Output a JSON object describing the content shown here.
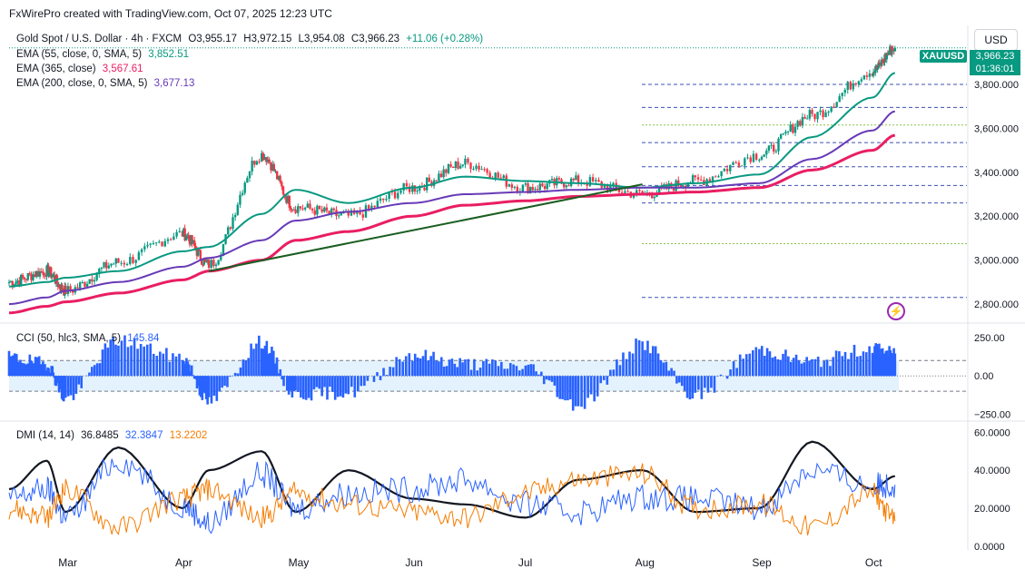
{
  "header": {
    "credit": "FxWirePro created with TradingView.com, Oct 07, 2025 12:23 UTC"
  },
  "main_legend": {
    "symbol": "Gold Spot / U.S. Dollar · 4h · FXCM",
    "open": "O3,955.17",
    "high": "H3,972.15",
    "low": "L3,954.08",
    "close": "C3,966.23",
    "change": "+11.06 (+0.28%)",
    "ema55_label": "EMA (55, close, 0, SMA, 5)",
    "ema55_value": "3,852.51",
    "ema365_label": "EMA (365, close)",
    "ema365_value": "3,567.61",
    "ema200_label": "EMA (200, close, 0, SMA, 5)",
    "ema200_value": "3,677.13"
  },
  "cci_legend": {
    "label": "CCI (50, hlc3, SMA, 5)",
    "value": "145.84"
  },
  "dmi_legend": {
    "label": "DMI (14, 14)",
    "adx": "36.8485",
    "plus_di": "32.3847",
    "minus_di": "13.2202"
  },
  "currency": "USD",
  "price_tag": {
    "ticker": "XAUUSD",
    "price": "3,966.23",
    "countdown": "01:36:01"
  },
  "colors": {
    "up": "#089981",
    "down": "#f23645",
    "ema55": "#089981",
    "ema365": "#e91e63",
    "ema200": "#673ab7",
    "trendline": "#1b5e20",
    "cci": "#2962ff",
    "adx": "#131722",
    "plus_di": "#2962ff",
    "minus_di": "#f57c00"
  },
  "icons": {
    "replay": "lightning-circle-icon"
  },
  "chart_data": [
    {
      "type": "candlestick",
      "title": "Gold Spot / U.S. Dollar · 4h · FXCM",
      "x_tick_labels": [
        "Mar",
        "Apr",
        "May",
        "Jun",
        "Jul",
        "Aug",
        "Sep",
        "Oct"
      ],
      "y_tick_labels": [
        "3,800.000",
        "3,600.000",
        "3,400.000",
        "3,200.000",
        "3,000.000",
        "2,800.000"
      ],
      "y_ticks": [
        3800,
        3600,
        3400,
        3200,
        3000,
        2800
      ],
      "ylim": [
        2730,
        4060
      ],
      "series_close_approx": {
        "x": [
          "Feb 14",
          "Feb 24",
          "Mar 01",
          "Mar 15",
          "Apr 01",
          "Apr 08",
          "Apr 22",
          "May 01",
          "May 15",
          "Jun 01",
          "Jun 15",
          "Jul 01",
          "Jul 15",
          "Aug 01",
          "Aug 15",
          "Sep 01",
          "Sep 15",
          "Oct 01",
          "Oct 07"
        ],
        "values": [
          2900,
          2950,
          2860,
          2990,
          3120,
          2980,
          3480,
          3240,
          3200,
          3330,
          3440,
          3330,
          3360,
          3300,
          3360,
          3480,
          3660,
          3860,
          3966
        ]
      },
      "ema_series": [
        {
          "name": "EMA (55, close, 0, SMA, 5)",
          "values": [
            2880,
            2900,
            2920,
            2950,
            3040,
            3060,
            3210,
            3320,
            3260,
            3330,
            3380,
            3360,
            3350,
            3330,
            3350,
            3390,
            3560,
            3740,
            3852
          ]
        },
        {
          "name": "EMA (365, close)",
          "values": [
            2760,
            2790,
            2810,
            2850,
            2910,
            2950,
            3000,
            3090,
            3130,
            3200,
            3250,
            3270,
            3290,
            3300,
            3310,
            3330,
            3410,
            3500,
            3568
          ]
        },
        {
          "name": "EMA (200, close, 0, SMA, 5)",
          "values": [
            2800,
            2830,
            2860,
            2900,
            2970,
            3010,
            3090,
            3180,
            3220,
            3260,
            3300,
            3310,
            3320,
            3330,
            3330,
            3350,
            3460,
            3590,
            3677
          ]
        }
      ],
      "horizontal_levels_blue_dashed": [
        3800,
        3695,
        3535,
        3425,
        3340,
        3260,
        2830
      ],
      "horizontal_levels_green_dashed": [
        3615,
        3075
      ],
      "trendline": {
        "from": [
          "Apr 08",
          2950
        ],
        "to": [
          "Aug 01",
          3345
        ]
      },
      "last_price": 3966.23
    },
    {
      "type": "area",
      "title": "CCI (50, hlc3, SMA, 5)",
      "y_tick_labels": [
        "250.00",
        "0.00",
        "−250.00"
      ],
      "y_ticks": [
        250,
        0,
        -250
      ],
      "bands": [
        100,
        -100
      ],
      "ylim": [
        -270,
        320
      ],
      "x": [
        "Feb 14",
        "Feb 24",
        "Mar 01",
        "Mar 15",
        "Apr 01",
        "Apr 08",
        "Apr 22",
        "May 01",
        "May 15",
        "Jun 01",
        "Jun 15",
        "Jul 01",
        "Jul 15",
        "Aug 01",
        "Aug 15",
        "Sep 01",
        "Sep 15",
        "Oct 01",
        "Oct 07"
      ],
      "values": [
        120,
        80,
        -150,
        230,
        120,
        -170,
        220,
        -120,
        -110,
        140,
        80,
        60,
        -190,
        210,
        -130,
        170,
        90,
        180,
        146
      ]
    },
    {
      "type": "line",
      "title": "DMI (14, 14)",
      "y_tick_labels": [
        "60.0000",
        "40.0000",
        "20.0000",
        "0.0000"
      ],
      "y_ticks": [
        60,
        40,
        20,
        0
      ],
      "ylim": [
        -2,
        63
      ],
      "x": [
        "Feb 14",
        "Feb 24",
        "Mar 01",
        "Mar 15",
        "Apr 01",
        "Apr 08",
        "Apr 22",
        "May 01",
        "May 15",
        "Jun 01",
        "Jun 15",
        "Jul 01",
        "Jul 15",
        "Aug 01",
        "Aug 15",
        "Sep 01",
        "Sep 15",
        "Oct 01",
        "Oct 07"
      ],
      "series": [
        {
          "name": "ADX",
          "values": [
            30,
            45,
            18,
            52,
            20,
            40,
            50,
            18,
            40,
            25,
            22,
            15,
            35,
            40,
            18,
            20,
            55,
            30,
            36.85
          ]
        },
        {
          "name": "+DI",
          "values": [
            25,
            30,
            15,
            45,
            22,
            12,
            38,
            20,
            28,
            30,
            35,
            22,
            18,
            26,
            25,
            20,
            40,
            32,
            32.38
          ]
        },
        {
          "name": "−DI",
          "values": [
            20,
            15,
            30,
            10,
            25,
            30,
            15,
            28,
            22,
            18,
            15,
            28,
            35,
            38,
            20,
            22,
            10,
            28,
            13.22
          ]
        }
      ]
    }
  ]
}
